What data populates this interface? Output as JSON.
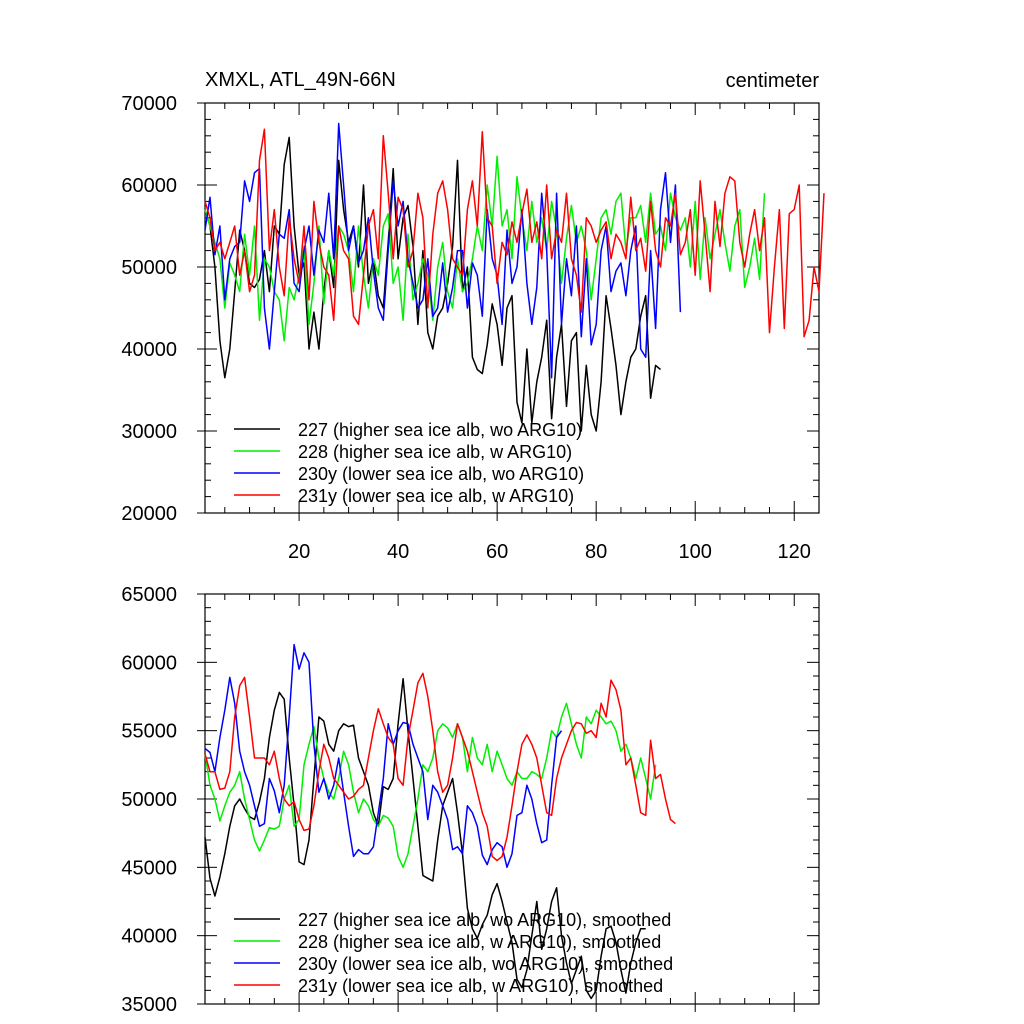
{
  "chart_data": [
    {
      "type": "line",
      "title": "XMXL, ATL_49N-66N",
      "units": "centimeter",
      "xlim": [
        1,
        125
      ],
      "ylim": [
        20000,
        70000
      ],
      "x_ticks": [
        "20",
        "40",
        "60",
        "80",
        "100",
        "120"
      ],
      "y_ticks": [
        "20000",
        "30000",
        "40000",
        "50000",
        "60000",
        "70000"
      ],
      "grid": false,
      "legend_position": "bottom-left",
      "series": [
        {
          "name": "227 (higher sea ice alb, wo ARG10)",
          "color": "#000000",
          "values": [
            57000,
            55000,
            50000,
            41000,
            36500,
            40000,
            47000,
            54500,
            52000,
            48000,
            47500,
            48500,
            52000,
            47000,
            55000,
            54000,
            62500,
            65800,
            55000,
            49000,
            50500,
            40000,
            44500,
            40000,
            47000,
            52000,
            47500,
            63000,
            57000,
            53000,
            55000,
            50000,
            60000,
            48000,
            51000,
            46500,
            45000,
            53000,
            62000,
            51000,
            56000,
            57500,
            52500,
            43000,
            52000,
            42000,
            40000,
            44000,
            45000,
            48000,
            52500,
            63000,
            47000,
            50000,
            39000,
            37500,
            37000,
            40500,
            45500,
            43000,
            38000,
            45000,
            46500,
            33500,
            31000,
            40000,
            31000,
            36000,
            39000,
            43500,
            31500,
            39000,
            43000,
            33000,
            41000,
            42000,
            30000,
            38000,
            32000,
            30000,
            36000,
            46500,
            42500,
            38000,
            32000,
            36000,
            39000,
            40000,
            44000,
            46500,
            34000,
            38000,
            37500
          ]
        },
        {
          "name": "228 (higher sea ice alb, w ARG10)",
          "color": "#00ee00",
          "values": [
            57000,
            55000,
            53000,
            51000,
            45000,
            50500,
            49000,
            47000,
            54000,
            49000,
            55000,
            43500,
            51000,
            50000,
            47000,
            46000,
            41000,
            47500,
            46000,
            49000,
            52500,
            43000,
            48000,
            55000,
            45500,
            52000,
            49000,
            55000,
            54000,
            52000,
            47000,
            55000,
            49000,
            45000,
            51000,
            49000,
            55000,
            56500,
            48000,
            50000,
            43500,
            54000,
            46000,
            48000,
            51000,
            49000,
            43500,
            50000,
            53000,
            47000,
            45000,
            51000,
            47000,
            48000,
            51000,
            55000,
            52000,
            60000,
            55000,
            63500,
            55000,
            57000,
            51000,
            61000,
            56000,
            52000,
            58000,
            53000,
            56000,
            52000,
            58000,
            54500,
            48000,
            53500,
            57500,
            53000,
            55000,
            52000,
            46000,
            51000,
            56000,
            57000,
            54000,
            58000,
            59000,
            52000,
            56000,
            56000,
            57500,
            53000,
            59000,
            54000,
            55000,
            52000,
            59000,
            56000,
            54500,
            56000,
            50000,
            58000,
            48500,
            56000,
            51000,
            54000,
            57000,
            53000,
            49500,
            55000,
            57000,
            47500,
            50000,
            53500,
            48500,
            59000
          ]
        },
        {
          "name": "230y (lower sea ice alb, wo ARG10)",
          "color": "#0000ff",
          "values": [
            54500,
            58500,
            51500,
            55000,
            46000,
            51000,
            52500,
            53000,
            60500,
            58000,
            61500,
            62000,
            45000,
            40000,
            47000,
            54000,
            53500,
            57000,
            48000,
            47000,
            52000,
            55000,
            49000,
            54500,
            53000,
            59000,
            51000,
            67500,
            60000,
            52000,
            55000,
            50500,
            52000,
            56000,
            49500,
            45000,
            43500,
            52000,
            60500,
            55000,
            58000,
            51000,
            48000,
            45000,
            46000,
            51000,
            44000,
            45000,
            50500,
            44500,
            47500,
            52000,
            52000,
            45000,
            50500,
            49000,
            44000,
            57000,
            51000,
            49000,
            43000,
            54500,
            48000,
            50000,
            57000,
            48000,
            43000,
            47500,
            59000,
            52000,
            36500,
            59000,
            43000,
            51000,
            46500,
            55000,
            41500,
            51000,
            40500,
            43000,
            52000,
            55000,
            47000,
            49500,
            50500,
            46500,
            52000,
            55000,
            40000,
            39000,
            52000,
            42500,
            57000,
            61500,
            53000,
            60000,
            44500
          ]
        },
        {
          "name": "231y (lower sea ice alb, w ARG10)",
          "color": "#ff0000",
          "values": [
            58000,
            56000,
            52000,
            53000,
            51000,
            53000,
            55000,
            49000,
            52000,
            47000,
            49000,
            63000,
            66800,
            52000,
            57000,
            50000,
            46500,
            56000,
            51000,
            48000,
            55000,
            46000,
            58000,
            53000,
            50000,
            49000,
            43500,
            55000,
            52000,
            51000,
            44000,
            43000,
            49000,
            55000,
            57000,
            51000,
            66000,
            59000,
            51000,
            58500,
            57000,
            50000,
            52000,
            59000,
            56000,
            45000,
            54000,
            59000,
            60500,
            57000,
            51000,
            50000,
            49000,
            57000,
            60500,
            55000,
            66500,
            56000,
            55000,
            48000,
            53000,
            51500,
            55500,
            53000,
            56500,
            59500,
            53000,
            55500,
            51000,
            60000,
            51000,
            54500,
            53000,
            59000,
            51000,
            49000,
            44500,
            56000,
            55000,
            53000,
            54500,
            55500,
            51000,
            54000,
            53000,
            51000,
            58500,
            52000,
            53500,
            49500,
            58000,
            52000,
            50000,
            56000,
            55000,
            59000,
            51500,
            53000,
            57000,
            49000,
            60500,
            54000,
            47000,
            58000,
            52500,
            59000,
            61000,
            60500,
            53000,
            50000,
            54000,
            57000,
            52000,
            56000,
            42000,
            50000,
            57000,
            42500,
            56500,
            57000,
            60000,
            41500,
            43500,
            50000,
            47000,
            59000
          ]
        }
      ]
    },
    {
      "type": "line",
      "title": "",
      "xlim": [
        1,
        125
      ],
      "ylim": [
        35000,
        65000
      ],
      "y_ticks": [
        "35000",
        "40000",
        "45000",
        "50000",
        "55000",
        "60000",
        "65000"
      ],
      "grid": false,
      "legend_position": "bottom-left",
      "series": [
        {
          "name": "227 (higher sea ice alb, wo ARG10), smoothed",
          "color": "#000000",
          "values": [
            47200,
            44200,
            42900,
            44300,
            46000,
            48000,
            49500,
            50000,
            49300,
            48700,
            48500,
            49800,
            51500,
            54500,
            56500,
            57800,
            57300,
            53000,
            49500,
            45400,
            45200,
            47000,
            51500,
            56000,
            55700,
            54000,
            53500,
            55000,
            55500,
            55300,
            55400,
            53000,
            52000,
            51000,
            49000,
            48000,
            50900,
            50700,
            51500,
            55500,
            58800,
            55000,
            51500,
            48000,
            44400,
            44200,
            44000,
            47000,
            49500,
            50500,
            51500,
            49000,
            46000,
            42000,
            40500,
            39800,
            40800,
            41500,
            43000,
            43800,
            42500,
            41000,
            39500,
            36800,
            36200,
            37500,
            40000,
            42500,
            39000,
            40500,
            42500,
            43500,
            40000,
            38000,
            36500,
            37500,
            38500,
            36000,
            35400,
            36000,
            38500,
            40500,
            40700,
            39500,
            37500,
            35800,
            38000,
            39500,
            40500,
            40500
          ]
        },
        {
          "name": "228 (higher sea ice alb, w ARG10), smoothed",
          "color": "#00ee00",
          "values": [
            53300,
            51000,
            50000,
            48400,
            49500,
            50500,
            51000,
            52000,
            50000,
            48500,
            47000,
            46200,
            47000,
            47900,
            47800,
            48000,
            50000,
            51000,
            48000,
            48500,
            52500,
            54000,
            55300,
            53000,
            51500,
            50500,
            50000,
            51500,
            53500,
            52500,
            50500,
            49000,
            50000,
            49500,
            48500,
            48000,
            48800,
            48600,
            48000,
            45800,
            45000,
            46000,
            48000,
            50000,
            52500,
            52000,
            53000,
            55000,
            55500,
            55200,
            54500,
            55500,
            54500,
            52000,
            54500,
            53000,
            52500,
            54000,
            52000,
            53500,
            52500,
            51500,
            51000,
            52000,
            51500,
            51500,
            52000,
            51800,
            51500,
            53000,
            55000,
            54500,
            56000,
            57000,
            55500,
            54000,
            53000,
            56000,
            55500,
            56500,
            56000,
            55500,
            55700,
            55000,
            53500,
            54000,
            53000,
            51500,
            53000,
            51500,
            50000,
            52500
          ]
        },
        {
          "name": "230y (lower sea ice alb, wo ARG10), smoothed",
          "color": "#0000ff",
          "values": [
            53700,
            53400,
            52000,
            54500,
            56500,
            58900,
            57000,
            53500,
            52000,
            51000,
            49500,
            48000,
            48200,
            51500,
            50600,
            49000,
            51000,
            56000,
            61300,
            59500,
            60700,
            60000,
            54000,
            50500,
            51500,
            50000,
            51000,
            53000,
            50500,
            48000,
            45800,
            46300,
            46000,
            46000,
            46500,
            49000,
            51500,
            55500,
            54000,
            55000,
            55600,
            55500,
            54000,
            53000,
            52000,
            48500,
            51000,
            50500,
            49500,
            48500,
            46300,
            46500,
            46000,
            49500,
            49000,
            48000,
            45900,
            45200,
            46300,
            46800,
            46500,
            45000,
            46000,
            48800,
            49000,
            51000,
            50000,
            48200,
            46800,
            47000,
            51000,
            54500,
            55000
          ]
        },
        {
          "name": "231y (lower sea ice alb, w ARG10), smoothed",
          "color": "#ff0000",
          "values": [
            53300,
            52000,
            52000,
            50700,
            50800,
            52000,
            56000,
            58300,
            58900,
            56000,
            53000,
            53000,
            53000,
            52500,
            53500,
            51500,
            50000,
            49500,
            49800,
            48500,
            47700,
            47800,
            49500,
            52000,
            54000,
            53000,
            51500,
            51000,
            50500,
            50000,
            50200,
            50700,
            51000,
            53000,
            55000,
            56600,
            55500,
            54500,
            54000,
            51500,
            51000,
            54500,
            56500,
            58500,
            59200,
            57500,
            55000,
            52000,
            50500,
            51000,
            53000,
            55500,
            54500,
            53500,
            52000,
            50500,
            49000,
            48000,
            45800,
            45500,
            45800,
            47200,
            49500,
            52000,
            54000,
            54700,
            54000,
            53000,
            51000,
            49000,
            48800,
            51500,
            53000,
            54000,
            55000,
            55600,
            55500,
            54800,
            55000,
            54500,
            57000,
            56000,
            58700,
            58000,
            56500,
            52500,
            53000,
            51000,
            49000,
            48800,
            54300,
            51500,
            51800,
            50000,
            48500,
            48200
          ]
        }
      ]
    }
  ]
}
